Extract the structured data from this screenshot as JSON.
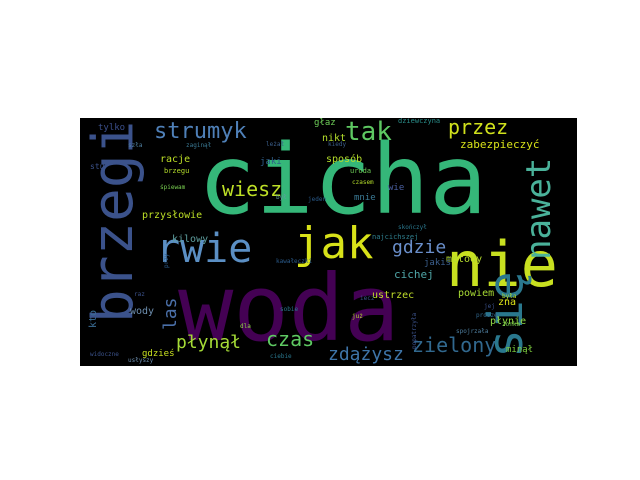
{
  "wordcloud": {
    "background": "#000000",
    "palette": "viridis",
    "words": [
      {
        "text": "cicha",
        "color": "#35b779"
      },
      {
        "text": "woda",
        "color": "#440154"
      },
      {
        "text": "brzegi",
        "color": "#3b528b"
      },
      {
        "text": "rwie",
        "color": "#5b8fc4"
      },
      {
        "text": "nie",
        "color": "#c8e020"
      },
      {
        "text": "się",
        "color": "#2a788e"
      },
      {
        "text": "jak",
        "color": "#d8e219"
      },
      {
        "text": "nawet",
        "color": "#4ab29a"
      },
      {
        "text": "tak",
        "color": "#5ec962"
      },
      {
        "text": "strumyk",
        "color": "#4f80b8"
      },
      {
        "text": "przez",
        "color": "#d0e11c"
      },
      {
        "text": "wiesz",
        "color": "#bddf26"
      },
      {
        "text": "gdzie",
        "color": "#6a8fcb"
      },
      {
        "text": "zielony",
        "color": "#31688e"
      },
      {
        "text": "płynął",
        "color": "#a5db36"
      },
      {
        "text": "czas",
        "color": "#5ec962"
      },
      {
        "text": "zdążysz",
        "color": "#3e74a8"
      },
      {
        "text": "las",
        "color": "#4a6fa8"
      },
      {
        "text": "zabezpieczyć",
        "color": "#d8e219"
      },
      {
        "text": "cichej",
        "color": "#4fa6a8"
      },
      {
        "text": "sposób",
        "color": "#b5de2b"
      },
      {
        "text": "ustrzec",
        "color": "#c0de2a"
      },
      {
        "text": "metody",
        "color": "#b6dd2e"
      },
      {
        "text": "racje",
        "color": "#bddf26"
      },
      {
        "text": "przysłowie",
        "color": "#bddf26"
      },
      {
        "text": "kilowy",
        "color": "#5e9e9e"
      },
      {
        "text": "wody",
        "color": "#6e8fb0"
      },
      {
        "text": "kto",
        "color": "#3b6e96"
      },
      {
        "text": "powiem",
        "color": "#a8db34"
      },
      {
        "text": "płynie",
        "color": "#8fd744"
      },
      {
        "text": "zna",
        "color": "#dde318"
      },
      {
        "text": "minął",
        "color": "#7dcd3e"
      },
      {
        "text": "nikt",
        "color": "#b5de2b"
      },
      {
        "text": "głaz",
        "color": "#6ece58"
      },
      {
        "text": "mnie",
        "color": "#3b7b96"
      },
      {
        "text": "wie",
        "color": "#4a5fa0"
      },
      {
        "text": "tylko",
        "color": "#3b4f8b"
      },
      {
        "text": "gdzieś",
        "color": "#c8e020"
      },
      {
        "text": "jaki",
        "color": "#2f5f8a"
      },
      {
        "text": "jakiś",
        "color": "#3a5e8c"
      },
      {
        "text": "najcichszej",
        "color": "#2f7f8e"
      },
      {
        "text": "dziewczyna",
        "color": "#2a8e8a"
      },
      {
        "text": "kiedy",
        "color": "#3b5e8b"
      },
      {
        "text": "uroda",
        "color": "#6ece58"
      },
      {
        "text": "czasem",
        "color": "#b5de2b"
      },
      {
        "text": "jeden",
        "color": "#2a5a8a"
      },
      {
        "text": "już",
        "color": "#b5de2b"
      },
      {
        "text": "sobie",
        "color": "#2a788e"
      },
      {
        "text": "dla",
        "color": "#8fd744"
      },
      {
        "text": "ciebie",
        "color": "#2a788e"
      },
      {
        "text": "skończył",
        "color": "#2a788e"
      },
      {
        "text": "popatrzyła",
        "color": "#3b528b"
      },
      {
        "text": "proszę",
        "color": "#31688e"
      },
      {
        "text": "spojrzała",
        "color": "#4f7fa0"
      },
      {
        "text": "żonka",
        "color": "#7ad151"
      },
      {
        "text": "była",
        "color": "#b5de2b"
      },
      {
        "text": "jej",
        "color": "#3b528b"
      },
      {
        "text": "zaginął",
        "color": "#3b7b96"
      },
      {
        "text": "leżał",
        "color": "#3b5e8b"
      },
      {
        "text": "brzegu",
        "color": "#b5de2b"
      },
      {
        "text": "śpiewam",
        "color": "#7ad151"
      },
      {
        "text": "stu",
        "color": "#3b528b"
      },
      {
        "text": "kawałeczki",
        "color": "#2a5a8a"
      },
      {
        "text": "raz",
        "color": "#3b528b"
      },
      {
        "text": "przy",
        "color": "#2a5a8a"
      },
      {
        "text": "usłyszy",
        "color": "#6e8fb0"
      },
      {
        "text": "widoczne",
        "color": "#3b528b"
      },
      {
        "text": "ostatni",
        "color": "#3b528b"
      },
      {
        "text": "szła",
        "color": "#4f7fa0"
      },
      {
        "text": "iecz",
        "color": "#3b528b"
      },
      {
        "text": "był",
        "color": "#5e9e9e"
      }
    ]
  }
}
